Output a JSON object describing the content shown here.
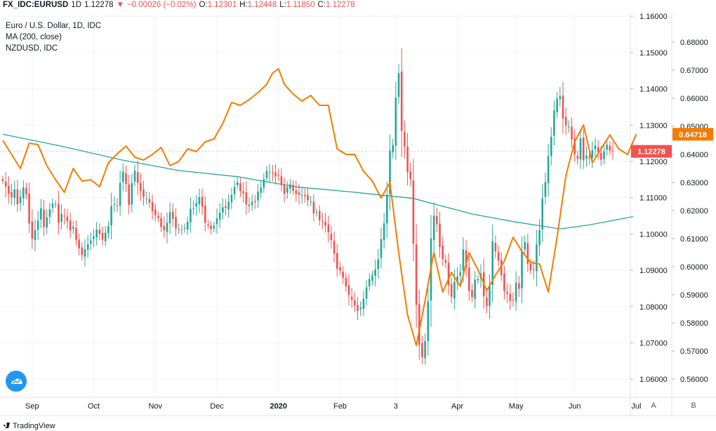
{
  "header": {
    "symbol": "FX_IDC:EURUSD",
    "interval": "1D",
    "last": "1.12278",
    "change_arrow": "▼",
    "change": "−0.00026 (−0.02%)",
    "o_label": "O:",
    "o_value": "1.12301",
    "h_label": "H:",
    "h_value": "1.12448",
    "l_label": "L:",
    "l_value": "1.11850",
    "c_label": "C:",
    "c_value": "1.12278"
  },
  "legend": {
    "main": "Euro / U.S. Dollar, 1D, IDC",
    "ma": "MA (200, close)",
    "compare": "NZDUSD, IDC"
  },
  "axis_buttons": {
    "a": "A",
    "b": "B"
  },
  "brand": "TradingView",
  "colors": {
    "up": "#26a69a",
    "down": "#ef5350",
    "ma": "#26a69a",
    "compare": "#f57c00",
    "grid": "#f0f3fa",
    "price_badge": "#ef5350",
    "compare_badge": "#f57c00"
  },
  "chart_data": {
    "type": "line",
    "x_tick_labels": [
      "Sep",
      "Oct",
      "Nov",
      "Dec",
      "2020",
      "Feb",
      "3",
      "Apr",
      "May",
      "Jun",
      "Jul"
    ],
    "x_tick_index": [
      10,
      31,
      52,
      73,
      94,
      115,
      134,
      155,
      175,
      195,
      216
    ],
    "inner_axis": {
      "range": [
        1.055,
        1.161
      ],
      "ticks": [
        "1.16000",
        "1.15000",
        "1.14000",
        "1.13000",
        "1.12000",
        "1.11000",
        "1.10000",
        "1.09000",
        "1.08000",
        "1.07000",
        "1.06000"
      ],
      "last_value_label": "1.12278"
    },
    "outer_axis": {
      "range": [
        0.5535,
        0.6905
      ],
      "ticks": [
        "0.68000",
        "0.67000",
        "0.66000",
        "0.65000",
        "0.64000",
        "0.63000",
        "0.62000",
        "0.61000",
        "0.60000",
        "0.59000",
        "0.58000",
        "0.57000",
        "0.56000"
      ],
      "last_value_label": "0.64718"
    },
    "series": [
      {
        "name": "Euro / U.S. Dollar",
        "kind": "candlestick-approx",
        "close": [
          1.1146,
          1.1131,
          1.1111,
          1.1102,
          1.1123,
          1.1082,
          1.1103,
          1.1128,
          1.111,
          1.1029,
          1.0987,
          1.1011,
          1.1037,
          1.1071,
          1.1019,
          1.1046,
          1.1068,
          1.1084,
          1.1083,
          1.1031,
          1.1055,
          1.1049,
          1.1035,
          1.101,
          1.102,
          1.0984,
          1.096,
          1.0942,
          1.0958,
          1.0972,
          1.0982,
          1.0994,
          1.1012,
          1.1,
          1.0984,
          1.1004,
          1.1022,
          1.1077,
          1.1082,
          1.1078,
          1.1141,
          1.1172,
          1.1138,
          1.108,
          1.114,
          1.1174,
          1.1141,
          1.1119,
          1.1102,
          1.1098,
          1.1086,
          1.1063,
          1.1052,
          1.1044,
          1.1019,
          1.101,
          1.1031,
          1.106,
          1.1042,
          1.1015,
          1.1013,
          1.1012,
          1.1017,
          1.1034,
          1.1069,
          1.1071,
          1.1085,
          1.1102,
          1.1075,
          1.1031,
          1.1024,
          1.1014,
          1.1023,
          1.1043,
          1.1059,
          1.1074,
          1.1072,
          1.1089,
          1.1108,
          1.113,
          1.1143,
          1.1118,
          1.1112,
          1.1082,
          1.1081,
          1.1089,
          1.1088,
          1.1117,
          1.1128,
          1.1151,
          1.1174,
          1.117,
          1.1168,
          1.1158,
          1.1162,
          1.1135,
          1.1111,
          1.1129,
          1.1137,
          1.1119,
          1.111,
          1.1108,
          1.1107,
          1.1104,
          1.1093,
          1.109,
          1.1057,
          1.1059,
          1.1038,
          1.1034,
          1.1023,
          1.1005,
          1.0983,
          1.0946,
          1.0904,
          1.0899,
          1.0879,
          1.0856,
          1.0832,
          1.0818,
          1.0803,
          1.0788,
          1.0797,
          1.0822,
          1.0853,
          1.0876,
          1.0886,
          1.0902,
          1.093,
          1.0986,
          1.1029,
          1.1108,
          1.123,
          1.1245,
          1.1376,
          1.1443,
          1.1284,
          1.1241,
          1.117,
          1.1152,
          1.0973,
          1.0805,
          1.0695,
          1.0661,
          1.0705,
          1.0814,
          1.0988,
          1.1051,
          1.1027,
          1.0964,
          1.0931,
          1.0921,
          1.0859,
          1.0827,
          1.0868,
          1.0883,
          1.0895,
          1.0958,
          1.0908,
          1.0843,
          1.0826,
          1.0874,
          1.0876,
          1.089,
          1.0828,
          1.0802,
          1.0857,
          1.098,
          1.0952,
          1.0927,
          1.0887,
          1.0843,
          1.0835,
          1.0816,
          1.0818,
          1.0866,
          1.0849,
          1.0953,
          1.0978,
          1.0918,
          1.09,
          1.0902,
          1.0971,
          1.1011,
          1.1098,
          1.1143,
          1.1215,
          1.1268,
          1.134,
          1.1373,
          1.138,
          1.1318,
          1.1299,
          1.1296,
          1.126,
          1.122,
          1.1207,
          1.1264,
          1.1203,
          1.1216,
          1.121,
          1.1231,
          1.1244,
          1.1225,
          1.1205,
          1.1228,
          1.1246,
          1.123,
          1.1228
        ]
      },
      {
        "name": "MA (200, close)",
        "x": [
          0,
          20,
          40,
          60,
          80,
          100,
          120,
          140,
          160,
          175,
          190,
          200,
          215
        ],
        "y": [
          1.1275,
          1.1242,
          1.1205,
          1.1175,
          1.1158,
          1.113,
          1.1115,
          1.1098,
          1.1055,
          1.1033,
          1.1014,
          1.1025,
          1.1048
        ]
      },
      {
        "name": "NZDUSD",
        "x": [
          0,
          3,
          6,
          9,
          12,
          15,
          18,
          21,
          24,
          27,
          30,
          33,
          36,
          39,
          42,
          45,
          48,
          51,
          54,
          57,
          60,
          63,
          66,
          69,
          72,
          75,
          78,
          81,
          84,
          87,
          90,
          92,
          94,
          96,
          99,
          102,
          105,
          108,
          111,
          114,
          117,
          120,
          123,
          126,
          129,
          132,
          135,
          138,
          141,
          144,
          147,
          150,
          153,
          156,
          159,
          162,
          165,
          168,
          171,
          174,
          177,
          180,
          183,
          186,
          189,
          192,
          195,
          198,
          201,
          204,
          207,
          210,
          213,
          216
        ],
        "y": [
          0.645,
          0.64,
          0.635,
          0.644,
          0.6435,
          0.636,
          0.631,
          0.6265,
          0.635,
          0.6305,
          0.631,
          0.6285,
          0.637,
          0.6402,
          0.643,
          0.639,
          0.638,
          0.64,
          0.6425,
          0.636,
          0.6375,
          0.642,
          0.641,
          0.6445,
          0.6455,
          0.651,
          0.6585,
          0.6575,
          0.6595,
          0.662,
          0.665,
          0.669,
          0.6705,
          0.665,
          0.6615,
          0.659,
          0.661,
          0.6575,
          0.6575,
          0.642,
          0.64,
          0.64,
          0.634,
          0.6305,
          0.6245,
          0.63,
          0.605,
          0.583,
          0.572,
          0.588,
          0.605,
          0.591,
          0.598,
          0.593,
          0.605,
          0.599,
          0.5915,
          0.597,
          0.602,
          0.6105,
          0.6055,
          0.6015,
          0.601,
          0.591,
          0.6105,
          0.6325,
          0.6445,
          0.6505,
          0.637,
          0.642,
          0.647,
          0.642,
          0.64,
          0.6472
        ]
      }
    ]
  }
}
